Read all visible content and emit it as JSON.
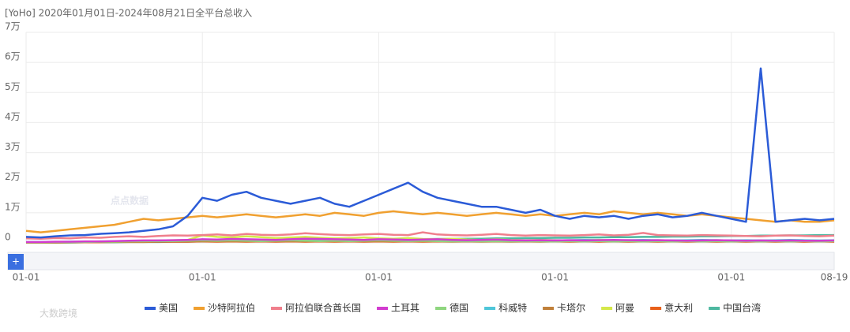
{
  "chart_data": {
    "type": "line",
    "title": "[YoHo]  2020年01月01日-2024年08月21日全平台总收入",
    "watermarks": [
      "点点数据",
      "大数跨境"
    ],
    "categories": [
      "01-01",
      null,
      null,
      null,
      null,
      null,
      null,
      null,
      null,
      null,
      null,
      null,
      "01-01",
      null,
      null,
      null,
      null,
      null,
      null,
      null,
      null,
      null,
      null,
      null,
      "01-01",
      null,
      null,
      null,
      null,
      null,
      null,
      null,
      null,
      null,
      null,
      null,
      "01-01",
      null,
      null,
      null,
      null,
      null,
      null,
      null,
      null,
      null,
      null,
      null,
      "01-01",
      null,
      null,
      null,
      null,
      null,
      null,
      "08-19"
    ],
    "ylim": [
      0,
      70000
    ],
    "yticks": [
      0,
      {
        "value": 10000,
        "label": "1万"
      },
      {
        "value": 20000,
        "label": "2万"
      },
      {
        "value": 30000,
        "label": "3万"
      },
      {
        "value": 40000,
        "label": "4万"
      },
      {
        "value": 50000,
        "label": "5万"
      },
      {
        "value": 60000,
        "label": "6万"
      },
      {
        "value": 70000,
        "label": "7万"
      }
    ],
    "grid": true,
    "legend": "bottom",
    "series": [
      {
        "name": "美国",
        "color": "#2b5bd7",
        "values": [
          2000,
          1800,
          2200,
          2500,
          2600,
          3000,
          3200,
          3500,
          4000,
          4500,
          5500,
          9000,
          15000,
          14000,
          16000,
          17000,
          15000,
          14000,
          13000,
          14000,
          15000,
          13000,
          12000,
          14000,
          16000,
          18000,
          20000,
          17000,
          15000,
          14000,
          13000,
          12000,
          12000,
          11000,
          10000,
          11000,
          9000,
          8000,
          9000,
          8500,
          9000,
          8000,
          9000,
          9500,
          8500,
          9000,
          10000,
          9000,
          8000,
          7000,
          58000,
          7000,
          7500,
          8000,
          7500,
          8000
        ]
      },
      {
        "name": "沙特阿拉伯",
        "color": "#f0a030",
        "values": [
          4000,
          3500,
          4000,
          4500,
          5000,
          5500,
          6000,
          7000,
          8000,
          7500,
          8000,
          8500,
          9000,
          8500,
          9000,
          9500,
          9000,
          8500,
          9000,
          9500,
          9000,
          10000,
          9500,
          9000,
          10000,
          10500,
          10000,
          9500,
          10000,
          9500,
          9000,
          9500,
          10000,
          9500,
          9000,
          9500,
          9000,
          9500,
          10000,
          9500,
          10500,
          10000,
          9500,
          10000,
          9500,
          9000,
          9500,
          9000,
          8500,
          8000,
          7500,
          7000,
          7500,
          7000,
          7000,
          7500
        ]
      },
      {
        "name": "阿拉伯联合酋长国",
        "color": "#f07f8c",
        "values": [
          1500,
          1400,
          1600,
          1500,
          1800,
          1700,
          2000,
          2200,
          2000,
          2300,
          2500,
          2400,
          2600,
          2800,
          2500,
          3000,
          2700,
          2600,
          2800,
          3200,
          2900,
          2700,
          2600,
          2800,
          3000,
          2700,
          2600,
          3500,
          2800,
          2600,
          2500,
          2700,
          3000,
          2600,
          2400,
          2600,
          2500,
          2400,
          2600,
          2800,
          2500,
          2700,
          3300,
          2600,
          2500,
          2400,
          2600,
          2500,
          2400,
          2300,
          2200,
          2400,
          2500,
          2300,
          2200,
          2400
        ]
      },
      {
        "name": "土耳其",
        "color": "#d23ccf",
        "values": [
          300,
          300,
          400,
          400,
          500,
          500,
          600,
          700,
          800,
          800,
          900,
          1000,
          1200,
          1100,
          1300,
          1200,
          1100,
          1000,
          1200,
          1400,
          1300,
          1200,
          1100,
          1000,
          1200,
          1100,
          1000,
          1100,
          1200,
          1000,
          900,
          1000,
          1100,
          900,
          800,
          900,
          800,
          900,
          800,
          900,
          1000,
          900,
          800,
          900,
          800,
          700,
          800,
          900,
          800,
          700,
          800,
          700,
          800,
          700,
          700,
          800
        ]
      },
      {
        "name": "德国",
        "color": "#8fd67f",
        "values": [
          200,
          200,
          300,
          300,
          300,
          400,
          400,
          500,
          500,
          600,
          600,
          700,
          800,
          700,
          800,
          700,
          600,
          700,
          800,
          700,
          600,
          700,
          600,
          700,
          800,
          700,
          600,
          700,
          600,
          500,
          600,
          500,
          600,
          500,
          600,
          500,
          500,
          600,
          500,
          600,
          500,
          600,
          500,
          600,
          500,
          600,
          500,
          600,
          500,
          600,
          500,
          600,
          500,
          600,
          500,
          600
        ]
      },
      {
        "name": "科威特",
        "color": "#4fc6d9",
        "values": [
          300,
          300,
          300,
          400,
          400,
          500,
          500,
          600,
          600,
          700,
          800,
          900,
          1000,
          900,
          1000,
          1100,
          1000,
          900,
          1000,
          1100,
          1000,
          900,
          1000,
          900,
          1000,
          1100,
          1000,
          900,
          1000,
          900,
          800,
          900,
          1000,
          900,
          800,
          900,
          800,
          900,
          1000,
          900,
          800,
          900,
          1000,
          900,
          800,
          900,
          1000,
          900,
          800,
          900,
          800,
          900,
          1000,
          900,
          800,
          900
        ]
      },
      {
        "name": "卡塔尔",
        "color": "#c0803a",
        "values": [
          200,
          200,
          200,
          300,
          300,
          300,
          400,
          400,
          500,
          500,
          600,
          600,
          700,
          600,
          700,
          600,
          700,
          600,
          700,
          600,
          700,
          600,
          700,
          600,
          700,
          600,
          700,
          600,
          700,
          600,
          500,
          600,
          500,
          600,
          500,
          600,
          500,
          600,
          500,
          600,
          500,
          600,
          500,
          600,
          500,
          600,
          500,
          600,
          500,
          600,
          500,
          600,
          500,
          600,
          500,
          600
        ]
      },
      {
        "name": "阿曼",
        "color": "#d5e84a",
        "values": [
          200,
          200,
          300,
          300,
          400,
          400,
          500,
          600,
          700,
          800,
          900,
          1000,
          2500,
          2000,
          1800,
          2200,
          1900,
          1600,
          1800,
          2000,
          1700,
          1500,
          1600,
          1800,
          1500,
          1400,
          1600,
          1300,
          1200,
          1400,
          1100,
          1000,
          1200,
          1000,
          900,
          1000,
          900,
          800,
          900,
          1000,
          800,
          900,
          800,
          900,
          800,
          700,
          800,
          900,
          800,
          700,
          800,
          700,
          800,
          700,
          700,
          800
        ]
      },
      {
        "name": "意大利",
        "color": "#e8601a",
        "values": [
          100,
          100,
          100,
          200,
          200,
          200,
          300,
          300,
          300,
          400,
          400,
          400,
          500,
          400,
          500,
          400,
          500,
          400,
          500,
          400,
          500,
          400,
          500,
          400,
          500,
          400,
          500,
          400,
          500,
          400,
          500,
          400,
          500,
          400,
          500,
          400,
          500,
          400,
          500,
          400,
          500,
          400,
          500,
          400,
          500,
          400,
          500,
          400,
          500,
          400,
          500,
          400,
          500,
          400,
          500,
          400
        ]
      },
      {
        "name": "中国台湾",
        "color": "#4db8a0",
        "values": [
          100,
          100,
          100,
          100,
          200,
          200,
          200,
          300,
          300,
          300,
          400,
          400,
          500,
          500,
          600,
          600,
          700,
          700,
          800,
          800,
          900,
          900,
          1000,
          1000,
          1100,
          1100,
          1200,
          1200,
          1300,
          1300,
          1400,
          1400,
          1500,
          1500,
          1600,
          1600,
          1700,
          1700,
          1800,
          1800,
          1900,
          1900,
          2000,
          2000,
          2100,
          2100,
          2200,
          2200,
          2300,
          2300,
          2400,
          2400,
          2500,
          2500,
          2600,
          2600
        ]
      }
    ]
  }
}
